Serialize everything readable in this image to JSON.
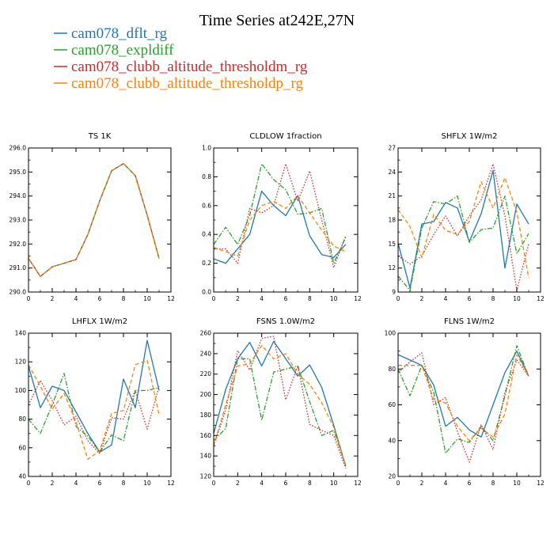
{
  "figure": {
    "title": "Time Series at242E,27N"
  },
  "legend": [
    {
      "name": "cam078_dflt_rg",
      "color": "#1f77b4",
      "dash": "solid"
    },
    {
      "name": "cam078_expldiff",
      "color": "#2ca02c",
      "dash": "dashdot"
    },
    {
      "name": "cam078_clubb_altitude_thresholdm_rg",
      "color": "#d62728",
      "dash": "dotted"
    },
    {
      "name": "cam078_clubb_altitude_thresholdp_rg",
      "color": "#ff7f0e",
      "dash": "dashed"
    }
  ],
  "chart_data": [
    {
      "type": "line",
      "title": "TS   1K",
      "x": [
        0,
        1,
        2,
        3,
        4,
        5,
        6,
        7,
        8,
        9,
        10,
        11
      ],
      "xlim": [
        0,
        12
      ],
      "xticks": [
        "0",
        "2",
        "4",
        "6",
        "8",
        "10",
        "12"
      ],
      "ylim": [
        290.0,
        296.0
      ],
      "yticks": [
        "290.0",
        "291.0",
        "292.0",
        "293.0",
        "294.0",
        "295.0",
        "296.0"
      ],
      "series": [
        {
          "name": "cam078_dflt_rg",
          "values": [
            291.4,
            290.65,
            291.05,
            291.2,
            291.35,
            292.4,
            293.8,
            295.05,
            295.35,
            294.85,
            293.2,
            291.4
          ]
        },
        {
          "name": "cam078_expldiff",
          "values": [
            291.4,
            290.65,
            291.05,
            291.2,
            291.35,
            292.4,
            293.8,
            295.05,
            295.35,
            294.85,
            293.2,
            291.4
          ]
        },
        {
          "name": "cam078_clubb_altitude_thresholdm_rg",
          "values": [
            291.4,
            290.65,
            291.05,
            291.2,
            291.35,
            292.4,
            293.8,
            295.05,
            295.35,
            294.85,
            293.2,
            291.4
          ]
        },
        {
          "name": "cam078_clubb_altitude_thresholdp_rg",
          "values": [
            291.4,
            290.65,
            291.05,
            291.2,
            291.35,
            292.4,
            293.8,
            295.05,
            295.35,
            294.85,
            293.2,
            291.4
          ]
        }
      ]
    },
    {
      "type": "line",
      "title": "CLDLOW   1fraction",
      "x": [
        0,
        1,
        2,
        3,
        4,
        5,
        6,
        7,
        8,
        9,
        10,
        11
      ],
      "xlim": [
        0,
        12
      ],
      "xticks": [
        "0",
        "2",
        "4",
        "6",
        "8",
        "10",
        "12"
      ],
      "ylim": [
        0.0,
        1.0
      ],
      "yticks": [
        "0.0",
        "0.2",
        "0.4",
        "0.6",
        "0.8",
        "1.0"
      ],
      "series": [
        {
          "name": "cam078_dflt_rg",
          "values": [
            0.23,
            0.2,
            0.3,
            0.4,
            0.7,
            0.6,
            0.53,
            0.67,
            0.39,
            0.26,
            0.24,
            0.33
          ]
        },
        {
          "name": "cam078_expldiff",
          "values": [
            0.33,
            0.45,
            0.33,
            0.53,
            0.89,
            0.78,
            0.71,
            0.54,
            0.55,
            0.58,
            0.2,
            0.38
          ]
        },
        {
          "name": "cam078_clubb_altitude_thresholdm_rg",
          "values": [
            0.3,
            0.3,
            0.2,
            0.58,
            0.55,
            0.6,
            0.89,
            0.63,
            0.84,
            0.5,
            0.17,
            0.39
          ]
        },
        {
          "name": "cam078_clubb_altitude_thresholdp_rg",
          "values": [
            0.31,
            0.28,
            0.25,
            0.5,
            0.6,
            0.63,
            0.58,
            0.67,
            0.55,
            0.43,
            0.32,
            0.28
          ]
        }
      ]
    },
    {
      "type": "line",
      "title": "SHFLX   1W/m2",
      "x": [
        0,
        1,
        2,
        3,
        4,
        5,
        6,
        7,
        8,
        9,
        10,
        11
      ],
      "xlim": [
        0,
        12
      ],
      "xticks": [
        "0",
        "2",
        "4",
        "6",
        "8",
        "10",
        "12"
      ],
      "ylim": [
        9,
        27
      ],
      "yticks": [
        "9",
        "12",
        "15",
        "18",
        "21",
        "24",
        "27"
      ],
      "series": [
        {
          "name": "cam078_dflt_rg",
          "values": [
            15.1,
            9.5,
            17.5,
            17.8,
            20.2,
            19.5,
            15.3,
            18.8,
            24.2,
            12.0,
            20.0,
            17.5
          ]
        },
        {
          "name": "cam078_expldiff",
          "values": [
            11.0,
            9.2,
            17.0,
            20.3,
            20.0,
            21.0,
            15.2,
            16.8,
            17.0,
            21.0,
            13.8,
            16.3
          ]
        },
        {
          "name": "cam078_clubb_altitude_thresholdm_rg",
          "values": [
            13.5,
            12.5,
            13.5,
            16.2,
            18.5,
            16.0,
            18.5,
            20.5,
            25.0,
            18.5,
            9.2,
            15.0
          ]
        },
        {
          "name": "cam078_clubb_altitude_thresholdp_rg",
          "values": [
            19.3,
            17.2,
            13.3,
            18.7,
            16.7,
            16.2,
            17.8,
            22.8,
            19.5,
            23.3,
            19.0,
            10.8
          ]
        }
      ]
    },
    {
      "type": "line",
      "title": "LHFLX   1W/m2",
      "x": [
        0,
        1,
        2,
        3,
        4,
        5,
        6,
        7,
        8,
        9,
        10,
        11
      ],
      "xlim": [
        0,
        12
      ],
      "xticks": [
        "0",
        "2",
        "4",
        "6",
        "8",
        "10",
        "12"
      ],
      "ylim": [
        40,
        140
      ],
      "yticks": [
        "40",
        "60",
        "80",
        "100",
        "120",
        "140"
      ],
      "series": [
        {
          "name": "cam078_dflt_rg",
          "values": [
            117,
            88,
            103,
            100,
            85,
            70,
            57,
            62,
            108,
            88,
            135,
            100
          ]
        },
        {
          "name": "cam078_expldiff",
          "values": [
            80,
            70,
            90,
            112,
            75,
            68,
            57,
            69,
            65,
            100,
            100,
            102
          ]
        },
        {
          "name": "cam078_clubb_altitude_thresholdm_rg",
          "values": [
            90,
            107,
            93,
            76,
            82,
            65,
            56,
            81,
            80,
            100,
            73,
            103
          ]
        },
        {
          "name": "cam078_clubb_altitude_thresholdp_rg",
          "values": [
            118,
            103,
            87,
            98,
            78,
            52,
            58,
            84,
            86,
            118,
            121,
            83
          ]
        }
      ]
    },
    {
      "type": "line",
      "title": "FSNS   1.0W/m2",
      "x": [
        0,
        1,
        2,
        3,
        4,
        5,
        6,
        7,
        8,
        9,
        10,
        11
      ],
      "xlim": [
        0,
        12
      ],
      "xticks": [
        "0",
        "2",
        "4",
        "6",
        "8",
        "10",
        "12"
      ],
      "ylim": [
        120,
        260
      ],
      "yticks": [
        "120",
        "140",
        "160",
        "180",
        "200",
        "220",
        "240",
        "260"
      ],
      "series": [
        {
          "name": "cam078_dflt_rg",
          "values": [
            162,
            205,
            235,
            251,
            228,
            252,
            235,
            218,
            229,
            207,
            170,
            130
          ]
        },
        {
          "name": "cam078_expldiff",
          "values": [
            155,
            167,
            235,
            235,
            175,
            222,
            225,
            228,
            193,
            160,
            165,
            131
          ]
        },
        {
          "name": "cam078_clubb_altitude_thresholdm_rg",
          "values": [
            150,
            185,
            243,
            224,
            255,
            257,
            195,
            228,
            171,
            165,
            160,
            128
          ]
        },
        {
          "name": "cam078_clubb_altitude_thresholdp_rg",
          "values": [
            150,
            190,
            228,
            230,
            248,
            235,
            240,
            220,
            210,
            192,
            168,
            130
          ]
        }
      ]
    },
    {
      "type": "line",
      "title": "FLNS   1W/m2",
      "x": [
        0,
        1,
        2,
        3,
        4,
        5,
        6,
        7,
        8,
        9,
        10,
        11
      ],
      "xlim": [
        0,
        12
      ],
      "xticks": [
        "0",
        "2",
        "4",
        "6",
        "8",
        "10",
        "12"
      ],
      "ylim": [
        20,
        100
      ],
      "yticks": [
        "20",
        "40",
        "60",
        "80",
        "100"
      ],
      "series": [
        {
          "name": "cam078_dflt_rg",
          "values": [
            88,
            85,
            82,
            71,
            48,
            53,
            46,
            42,
            60,
            78,
            90,
            76
          ]
        },
        {
          "name": "cam078_expldiff",
          "values": [
            80,
            65,
            82,
            67,
            33,
            41,
            39,
            48,
            40,
            65,
            93,
            76
          ]
        },
        {
          "name": "cam078_clubb_altitude_thresholdm_rg",
          "values": [
            78,
            84,
            89,
            60,
            64,
            45,
            28,
            49,
            35,
            67,
            85,
            76
          ]
        },
        {
          "name": "cam078_clubb_altitude_thresholdp_rg",
          "values": [
            82,
            82,
            82,
            63,
            61,
            48,
            40,
            47,
            42,
            55,
            88,
            76
          ]
        }
      ]
    }
  ]
}
